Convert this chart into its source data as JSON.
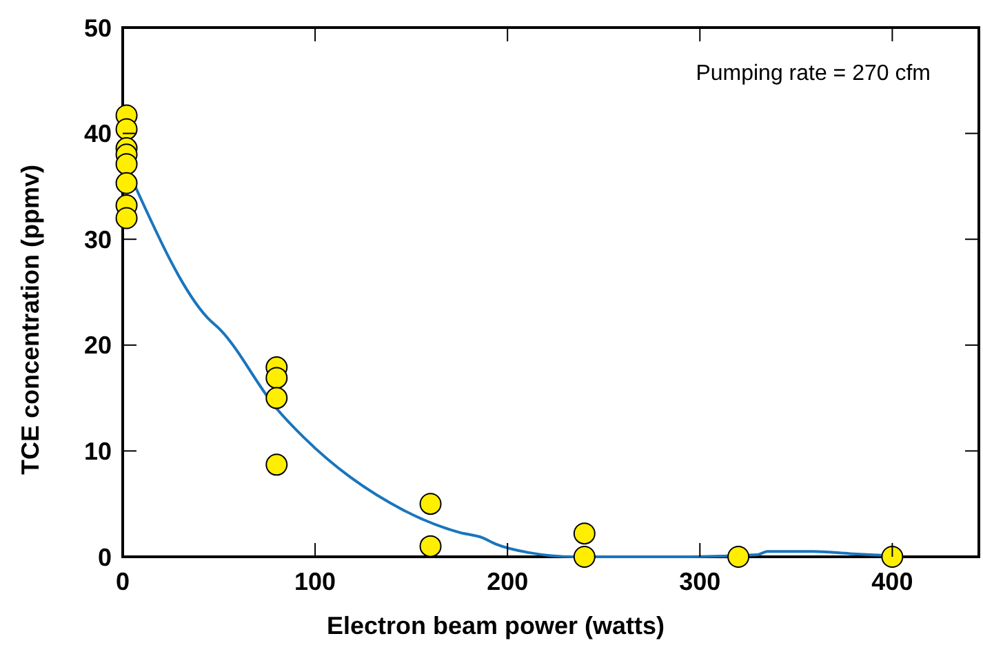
{
  "chart_data": {
    "type": "scatter",
    "xlabel": "Electron beam power (watts)",
    "ylabel": "TCE concentration (ppmv)",
    "xlim": [
      0,
      445
    ],
    "ylim": [
      0,
      50
    ],
    "xticks": [
      0,
      100,
      200,
      300,
      400
    ],
    "yticks": [
      0,
      10,
      20,
      30,
      40,
      50
    ],
    "grid": false,
    "annotations": [
      "Pumping rate = 270 cfm"
    ],
    "series": [
      {
        "color": "#ffee00",
        "marker": "circle",
        "x": [
          2,
          2,
          2,
          2,
          2,
          2,
          2,
          2,
          80,
          80,
          80,
          80,
          160,
          160,
          240,
          240,
          320,
          400
        ],
        "values": [
          41.7,
          40.4,
          38.6,
          38.0,
          37.1,
          35.3,
          33.2,
          32.0,
          17.9,
          16.9,
          15.0,
          8.7,
          5.0,
          1,
          2.2,
          0,
          0,
          0
        ]
      },
      {
        "type": "line",
        "color": "#1a75bc",
        "marker": "none",
        "x": [
          5.5,
          44,
          51,
          80,
          94,
          146,
          175,
          187,
          194,
          211,
          235,
          259,
          288,
          330,
          335,
          359,
          378,
          399
        ],
        "values": [
          35.4,
          22.6,
          21.4,
          14,
          11.3,
          4.4,
          2.3,
          1.8,
          1.2,
          0.4,
          0,
          0,
          0,
          0.2,
          0.5,
          0.5,
          0.3,
          0.1
        ]
      }
    ]
  }
}
